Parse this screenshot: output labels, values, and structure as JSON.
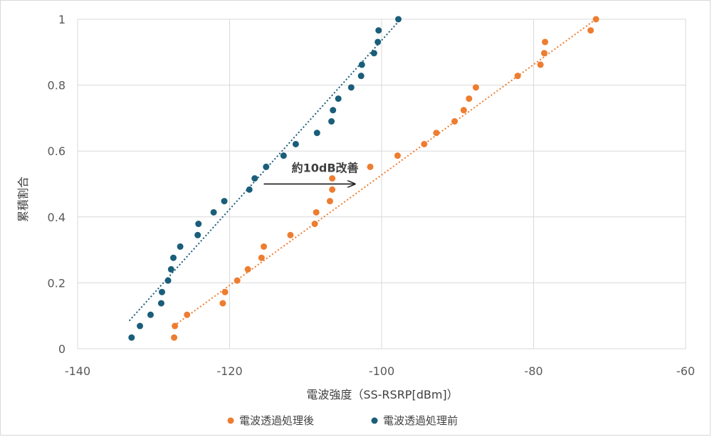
{
  "chart_data": {
    "type": "scatter",
    "xlabel": "電波強度（SS-RSRP[dBm]）",
    "ylabel": "累積割合",
    "xlim": [
      -140,
      -60
    ],
    "ylim": [
      0,
      1
    ],
    "x_ticks": [
      "-140",
      "-120",
      "-100",
      "-80",
      "-60"
    ],
    "y_ticks": [
      "0",
      "0.2",
      "0.4",
      "0.6",
      "0.8",
      "1"
    ],
    "grid": true,
    "legend_position": "bottom",
    "annotation": {
      "text": "約10dB改善",
      "arrow_from": [
        -115.5,
        0.5
      ],
      "arrow_to": [
        -103.5,
        0.5
      ]
    },
    "series": [
      {
        "name": "電波透過処理後",
        "color": "#ed7d31",
        "trendline": [
          [
            -127.3,
            0.07
          ],
          [
            -71.8,
            1.0
          ]
        ],
        "points": [
          [
            -127.3,
            0.034
          ],
          [
            -127.2,
            0.069
          ],
          [
            -125.6,
            0.103
          ],
          [
            -120.9,
            0.138
          ],
          [
            -120.6,
            0.172
          ],
          [
            -119.0,
            0.207
          ],
          [
            -117.6,
            0.241
          ],
          [
            -115.8,
            0.276
          ],
          [
            -115.5,
            0.31
          ],
          [
            -112.0,
            0.345
          ],
          [
            -108.8,
            0.379
          ],
          [
            -108.6,
            0.414
          ],
          [
            -106.8,
            0.448
          ],
          [
            -106.5,
            0.483
          ],
          [
            -106.5,
            0.517
          ],
          [
            -101.5,
            0.552
          ],
          [
            -97.9,
            0.586
          ],
          [
            -94.4,
            0.621
          ],
          [
            -92.8,
            0.655
          ],
          [
            -90.4,
            0.69
          ],
          [
            -89.2,
            0.724
          ],
          [
            -88.5,
            0.759
          ],
          [
            -87.6,
            0.793
          ],
          [
            -82.1,
            0.828
          ],
          [
            -79.1,
            0.862
          ],
          [
            -78.6,
            0.897
          ],
          [
            -78.5,
            0.931
          ],
          [
            -72.5,
            0.966
          ],
          [
            -71.8,
            1.0
          ]
        ]
      },
      {
        "name": "電波透過処理前",
        "color": "#1a5e7a",
        "trendline": [
          [
            -133.2,
            0.085
          ],
          [
            -97.5,
            1.0
          ]
        ],
        "points": [
          [
            -132.9,
            0.034
          ],
          [
            -131.8,
            0.069
          ],
          [
            -130.4,
            0.103
          ],
          [
            -129.0,
            0.138
          ],
          [
            -128.9,
            0.172
          ],
          [
            -128.1,
            0.207
          ],
          [
            -127.7,
            0.241
          ],
          [
            -127.4,
            0.276
          ],
          [
            -126.5,
            0.31
          ],
          [
            -124.2,
            0.345
          ],
          [
            -124.1,
            0.379
          ],
          [
            -122.1,
            0.414
          ],
          [
            -120.7,
            0.448
          ],
          [
            -117.4,
            0.483
          ],
          [
            -116.7,
            0.517
          ],
          [
            -115.2,
            0.552
          ],
          [
            -112.9,
            0.586
          ],
          [
            -111.3,
            0.621
          ],
          [
            -108.5,
            0.655
          ],
          [
            -106.6,
            0.69
          ],
          [
            -106.4,
            0.724
          ],
          [
            -105.7,
            0.759
          ],
          [
            -104.0,
            0.793
          ],
          [
            -102.7,
            0.828
          ],
          [
            -102.6,
            0.862
          ],
          [
            -101.0,
            0.897
          ],
          [
            -100.5,
            0.931
          ],
          [
            -100.4,
            0.966
          ],
          [
            -97.8,
            1.0
          ]
        ]
      }
    ]
  }
}
